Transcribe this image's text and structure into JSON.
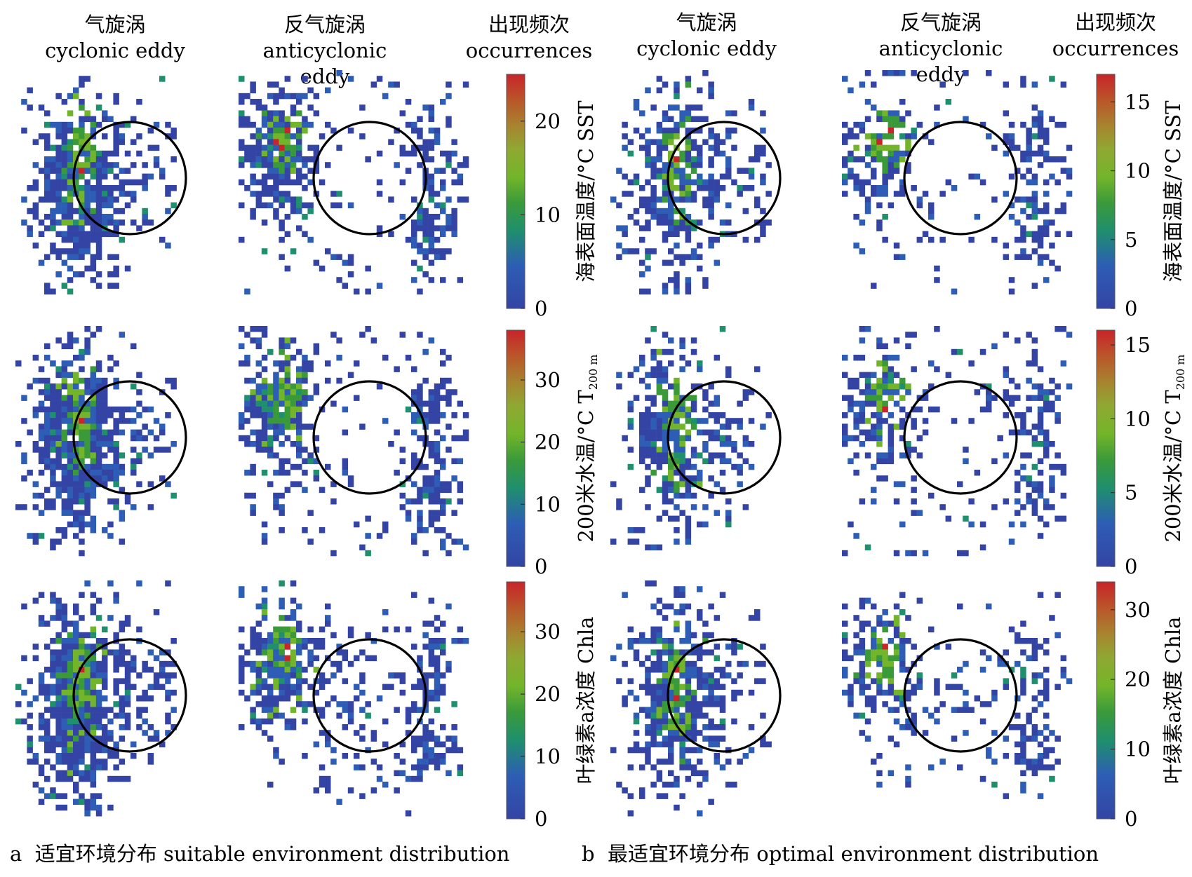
{
  "headers": {
    "a": [
      {
        "zh": "气旋涡",
        "en": "cyclonic eddy"
      },
      {
        "zh": "反气旋涡",
        "en": "anticyclonic eddy"
      },
      {
        "zh": "出现频次",
        "en": "occurrences"
      }
    ],
    "b": [
      {
        "zh": "气旋涡",
        "en": "cyclonic eddy"
      },
      {
        "zh": "反气旋涡",
        "en": "anticyclonic eddy"
      },
      {
        "zh": "出现频次",
        "en": "occurrences"
      }
    ]
  },
  "captions": {
    "a": {
      "letter": "a",
      "text": "适宜环境分布 suitable environment distribution"
    },
    "b": {
      "letter": "b",
      "text": "最适宜环境分布 optimal environment distribution"
    }
  },
  "colors": {
    "colormap": [
      "#3444a4",
      "#2d5db5",
      "#1f8f6e",
      "#3a9a3a",
      "#73b52a",
      "#8fa832",
      "#a7842f",
      "#b85a2a",
      "#c8242a"
    ],
    "circle": "#000000",
    "no_data": "#ffffff"
  },
  "chart_data": [
    {
      "type": "heatmap",
      "panel": "a",
      "variable": "SST",
      "colorbar_label": "海表面温度/°C SST",
      "ticks": [
        0,
        10,
        20
      ],
      "clim": [
        0,
        25
      ]
    },
    {
      "type": "heatmap",
      "panel": "a",
      "variable": "T200m",
      "colorbar_label": "200米水温/°C T",
      "label_subscript": "200 m",
      "ticks": [
        0,
        10,
        20,
        30
      ],
      "clim": [
        0,
        38
      ]
    },
    {
      "type": "heatmap",
      "panel": "a",
      "variable": "Chla",
      "colorbar_label": "叶绿素a浓度 Chla",
      "ticks": [
        0,
        10,
        20,
        30
      ],
      "clim": [
        0,
        38
      ]
    },
    {
      "type": "heatmap",
      "panel": "b",
      "variable": "SST",
      "colorbar_label": "海表面温度/°C SST",
      "ticks": [
        0,
        5,
        10,
        15
      ],
      "clim": [
        0,
        17
      ]
    },
    {
      "type": "heatmap",
      "panel": "b",
      "variable": "T200m",
      "colorbar_label": "200米水温/°C T",
      "label_subscript": "200 m",
      "ticks": [
        0,
        5,
        10,
        15
      ],
      "clim": [
        0,
        16
      ]
    },
    {
      "type": "heatmap",
      "panel": "b",
      "variable": "Chla",
      "colorbar_label": "叶绿素a浓度 Chla",
      "ticks": [
        0,
        10,
        20,
        30
      ],
      "clim": [
        0,
        34
      ]
    }
  ]
}
